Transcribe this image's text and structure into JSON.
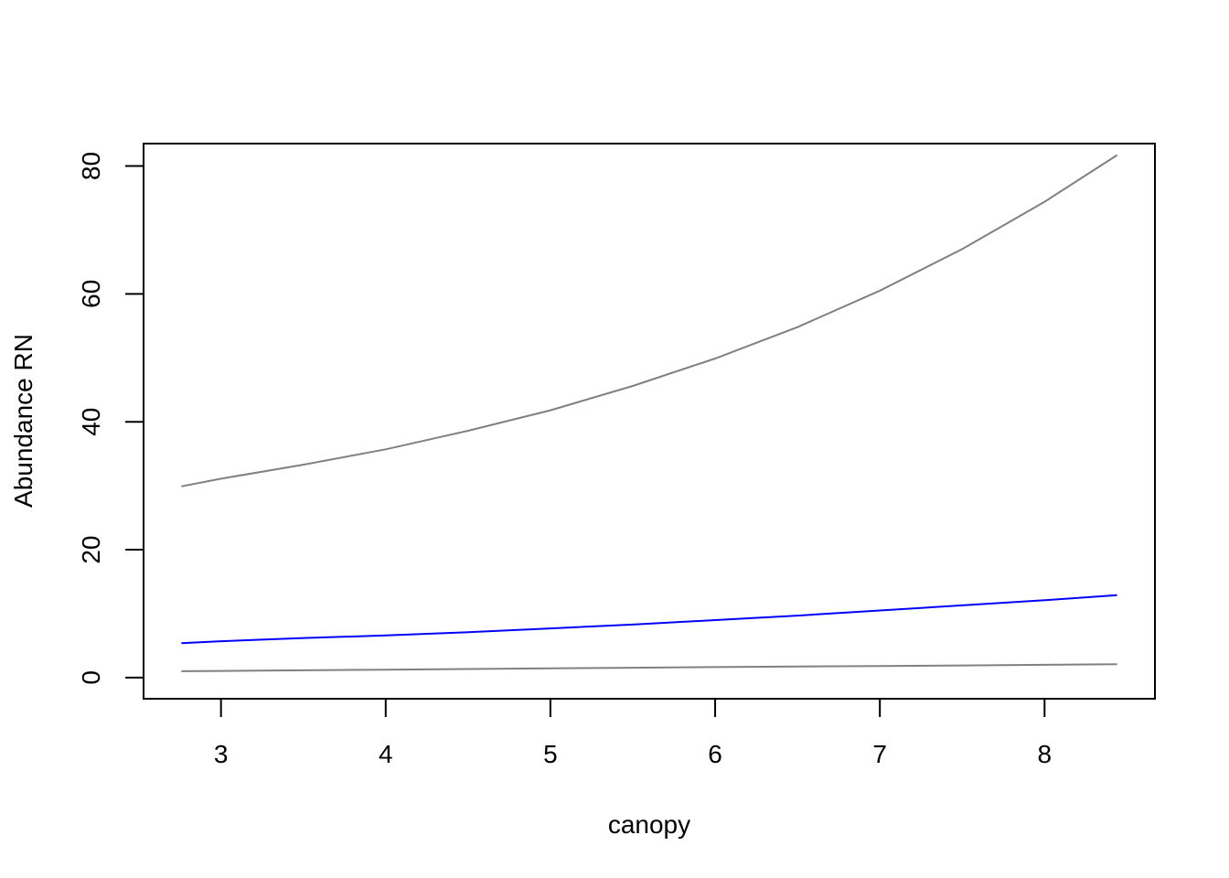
{
  "chart_data": {
    "type": "line",
    "title": "",
    "xlabel": "canopy",
    "ylabel": "Abundance RN",
    "xlim": [
      2.53,
      8.67
    ],
    "ylim": [
      -3.3,
      83.5
    ],
    "xticks": [
      3,
      4,
      5,
      6,
      7,
      8
    ],
    "yticks": [
      0,
      20,
      40,
      60,
      80
    ],
    "grid": false,
    "legend": "none",
    "x": [
      2.76,
      3.0,
      3.5,
      4.0,
      4.5,
      5.0,
      5.5,
      6.0,
      6.5,
      7.0,
      7.5,
      8.0,
      8.44
    ],
    "series": [
      {
        "color": "#808080",
        "values": [
          29.9,
          31.1,
          33.3,
          35.7,
          38.6,
          41.8,
          45.6,
          49.9,
          54.8,
          60.5,
          67.0,
          74.4,
          81.7
        ]
      },
      {
        "color": "#0000ff",
        "values": [
          5.4,
          5.7,
          6.2,
          6.6,
          7.1,
          7.7,
          8.3,
          9.0,
          9.7,
          10.5,
          11.3,
          12.1,
          12.9
        ]
      },
      {
        "color": "#808080",
        "values": [
          1.0,
          1.05,
          1.15,
          1.25,
          1.35,
          1.45,
          1.55,
          1.65,
          1.75,
          1.8,
          1.9,
          2.0,
          2.1
        ]
      }
    ]
  }
}
